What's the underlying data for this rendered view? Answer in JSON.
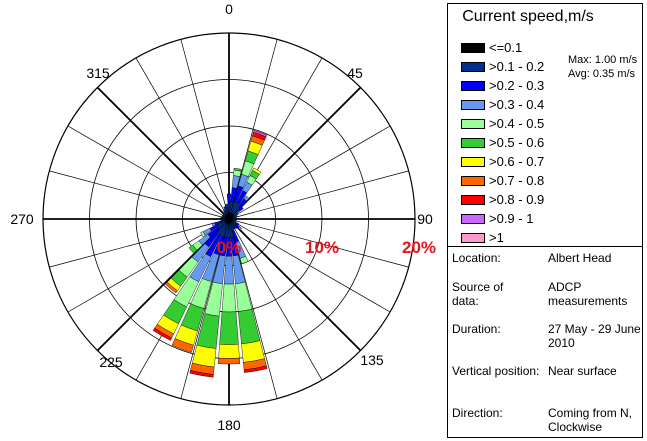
{
  "chart_data": {
    "type": "wind-rose",
    "title": "",
    "direction_labels": [
      "0",
      "45",
      "90",
      "135",
      "180",
      "225",
      "270",
      "315"
    ],
    "radial_ticks": [
      "0%",
      "10%",
      "20%"
    ],
    "radial_max_percent": 20,
    "legend_title": "Current speed,m/s",
    "stats": {
      "max": "Max: 1.00 m/s",
      "avg": "Avg: 0.35 m/s"
    },
    "speed_bins": [
      {
        "label": "<=0.1",
        "color": "#000000"
      },
      {
        "label": ">0.1 - 0.2",
        "color": "#00308e"
      },
      {
        "label": ">0.2 - 0.3",
        "color": "#0000ff"
      },
      {
        "label": ">0.3 - 0.4",
        "color": "#6699f0"
      },
      {
        "label": ">0.4 - 0.5",
        "color": "#99ff99"
      },
      {
        "label": ">0.5 - 0.6",
        "color": "#33cc33"
      },
      {
        "label": ">0.6 - 0.7",
        "color": "#ffff00"
      },
      {
        "label": ">0.7 - 0.8",
        "color": "#ff6600"
      },
      {
        "label": ">0.8 - 0.9",
        "color": "#ff0000"
      },
      {
        "label": ">0.9 - 1",
        "color": "#cc66ff"
      },
      {
        "label": ">1",
        "color": "#ff99cc"
      }
    ],
    "sectors": [
      {
        "dir": 0,
        "pct": [
          0.7,
          1.0,
          1.0
        ]
      },
      {
        "dir": 10,
        "pct": [
          0.7,
          1.2,
          1.5,
          1.3,
          0.6,
          0.2
        ]
      },
      {
        "dir": 20,
        "pct": [
          0.7,
          1.2,
          1.8,
          1.3,
          1.5,
          1.1,
          1.1,
          0.6,
          0.4,
          0.2,
          0.1
        ]
      },
      {
        "dir": 30,
        "pct": [
          0.7,
          1.2,
          1.5,
          1.0,
          0.8,
          0.6,
          0.3
        ]
      },
      {
        "dir": 40,
        "pct": [
          0.7,
          1.0,
          1.0,
          0.4
        ]
      },
      {
        "dir": 50,
        "pct": [
          0.6,
          0.9,
          0.4
        ]
      },
      {
        "dir": 60,
        "pct": [
          0.5,
          0.6
        ]
      },
      {
        "dir": 70,
        "pct": [
          0.4,
          0.5
        ]
      },
      {
        "dir": 80,
        "pct": [
          0.4,
          0.4
        ]
      },
      {
        "dir": 90,
        "pct": [
          0.4,
          0.4
        ]
      },
      {
        "dir": 100,
        "pct": [
          0.4,
          0.4
        ]
      },
      {
        "dir": 110,
        "pct": [
          0.4,
          0.4
        ]
      },
      {
        "dir": 120,
        "pct": [
          0.4,
          0.5,
          0.3
        ]
      },
      {
        "dir": 130,
        "pct": [
          0.4,
          0.5,
          0.5,
          0.3
        ]
      },
      {
        "dir": 140,
        "pct": [
          0.4,
          0.5,
          0.4
        ]
      },
      {
        "dir": 150,
        "pct": [
          0.4,
          0.5,
          0.3
        ]
      },
      {
        "dir": 160,
        "pct": [
          0.5,
          0.9,
          1.2,
          1.8,
          0.6
        ]
      },
      {
        "dir": 170,
        "pct": [
          0.5,
          1.5,
          2.0,
          3.0,
          3.0,
          3.5,
          2.0,
          0.8,
          0.3
        ]
      },
      {
        "dir": 180,
        "pct": [
          0.5,
          1.5,
          2.0,
          3.0,
          3.0,
          3.5,
          1.5,
          0.6
        ]
      },
      {
        "dir": 190,
        "pct": [
          0.5,
          1.5,
          2.0,
          3.0,
          3.5,
          3.5,
          2.0,
          0.8,
          0.3
        ]
      },
      {
        "dir": 200,
        "pct": [
          0.5,
          1.5,
          2.0,
          3.0,
          3.0,
          2.5,
          1.6,
          0.8
        ]
      },
      {
        "dir": 210,
        "pct": [
          0.5,
          1.5,
          2.5,
          3.0,
          3.0,
          2.0,
          1.2,
          0.5,
          0.3
        ]
      },
      {
        "dir": 220,
        "pct": [
          0.5,
          1.2,
          2.0,
          2.0,
          2.0,
          1.2,
          0.6,
          0.3
        ]
      },
      {
        "dir": 230,
        "pct": [
          0.5,
          1.0,
          1.3,
          1.2,
          0.8,
          0.5
        ]
      },
      {
        "dir": 240,
        "pct": [
          0.5,
          0.8,
          1.0,
          0.8,
          0.3
        ]
      },
      {
        "dir": 250,
        "pct": [
          0.4,
          0.6,
          0.6,
          0.3
        ]
      },
      {
        "dir": 260,
        "pct": [
          0.4,
          0.5
        ]
      },
      {
        "dir": 270,
        "pct": [
          0.4,
          0.5
        ]
      },
      {
        "dir": 280,
        "pct": [
          0.4,
          0.5
        ]
      },
      {
        "dir": 290,
        "pct": [
          0.4,
          0.4
        ]
      },
      {
        "dir": 300,
        "pct": [
          0.4,
          0.4
        ]
      },
      {
        "dir": 310,
        "pct": [
          0.4,
          0.4
        ]
      },
      {
        "dir": 320,
        "pct": [
          0.5,
          0.4
        ]
      },
      {
        "dir": 330,
        "pct": [
          0.5,
          0.6
        ]
      },
      {
        "dir": 340,
        "pct": [
          0.6,
          0.8
        ]
      },
      {
        "dir": 350,
        "pct": [
          0.6,
          1.0
        ]
      }
    ]
  },
  "info": [
    {
      "label": "Location:",
      "value": "Albert Head"
    },
    {
      "label": "Source of data:",
      "value": "ADCP measurements"
    },
    {
      "label": "Duration:",
      "value": "27 May - 29 June 2010"
    },
    {
      "label": "Vertical position:",
      "value": "Near surface"
    },
    {
      "label": "Direction:",
      "value": "Coming from N, Clockwise"
    }
  ],
  "colors": {
    "radial_tick_color": "#e8141c"
  }
}
